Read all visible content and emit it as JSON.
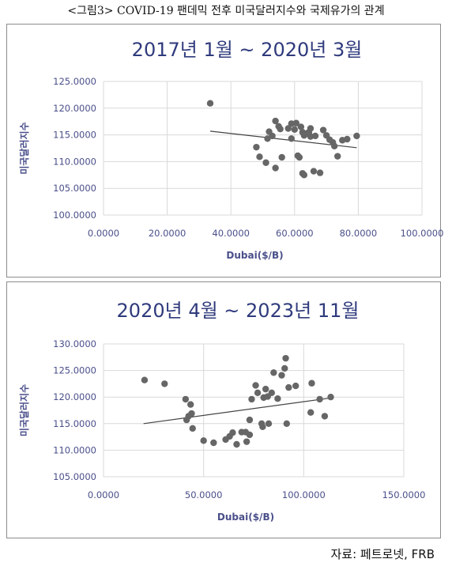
{
  "figure_title": "<그림3> COVID-19 팬데믹 전후 미국달러지수와 국제유가의 관계",
  "source": "자료: 페트로넷, FRB",
  "colors": {
    "title": "#2f3a7c",
    "axis_text": "#4a4f8a",
    "point": "#666666",
    "trend": "#444444",
    "grid": "#d9d9d9"
  },
  "chart_data": [
    {
      "type": "scatter",
      "title": "2017년 1월 ~ 2020년 3월",
      "xlabel": "Dubai($/B)",
      "ylabel": "미국달러지수",
      "xlim": [
        0,
        100
      ],
      "ylim": [
        100,
        125
      ],
      "xticks": [
        0,
        20,
        40,
        60,
        80,
        100
      ],
      "yticks": [
        100,
        105,
        110,
        115,
        120,
        125
      ],
      "xtick_labels": [
        "0.0000",
        "20.0000",
        "40.0000",
        "60.0000",
        "80.0000",
        "100.0000"
      ],
      "ytick_labels": [
        "100.0000",
        "105.0000",
        "110.0000",
        "115.0000",
        "120.0000",
        "125.0000"
      ],
      "grid": true,
      "trendline": [
        [
          33.5,
          115.7
        ],
        [
          79.5,
          112.6
        ]
      ],
      "points": [
        [
          33.5,
          120.9
        ],
        [
          48.0,
          112.7
        ],
        [
          49.0,
          110.9
        ],
        [
          51.0,
          109.8
        ],
        [
          51.5,
          114.3
        ],
        [
          52.0,
          115.6
        ],
        [
          53.0,
          114.8
        ],
        [
          54.0,
          108.8
        ],
        [
          54.0,
          117.6
        ],
        [
          55.0,
          116.6
        ],
        [
          55.5,
          116.1
        ],
        [
          56.0,
          110.8
        ],
        [
          58.0,
          116.2
        ],
        [
          59.0,
          117.1
        ],
        [
          59.0,
          114.3
        ],
        [
          60.0,
          116.0
        ],
        [
          60.5,
          117.2
        ],
        [
          61.0,
          111.1
        ],
        [
          61.5,
          110.8
        ],
        [
          62.0,
          116.5
        ],
        [
          62.5,
          115.5
        ],
        [
          62.5,
          107.8
        ],
        [
          63.0,
          107.5
        ],
        [
          63.0,
          114.9
        ],
        [
          64.0,
          115.3
        ],
        [
          64.5,
          115.5
        ],
        [
          65.0,
          116.2
        ],
        [
          65.0,
          114.7
        ],
        [
          66.0,
          108.2
        ],
        [
          66.5,
          114.8
        ],
        [
          68.0,
          107.9
        ],
        [
          69.0,
          115.9
        ],
        [
          70.0,
          114.9
        ],
        [
          71.0,
          114.1
        ],
        [
          72.0,
          113.6
        ],
        [
          72.5,
          112.9
        ],
        [
          73.5,
          111.0
        ],
        [
          75.0,
          114.0
        ],
        [
          76.5,
          114.2
        ],
        [
          79.5,
          114.8
        ]
      ]
    },
    {
      "type": "scatter",
      "title": "2020년 4월 ~ 2023년 11월",
      "xlabel": "Dubai($/B)",
      "ylabel": "미국달러지수",
      "xlim": [
        0,
        150
      ],
      "ylim": [
        105,
        130
      ],
      "xticks": [
        0,
        50,
        100,
        150
      ],
      "yticks": [
        105,
        110,
        115,
        120,
        125,
        130
      ],
      "xtick_labels": [
        "0.0000",
        "50.0000",
        "100.0000",
        "150.0000"
      ],
      "ytick_labels": [
        "105.0000",
        "110.0000",
        "115.0000",
        "120.0000",
        "125.0000",
        "130.0000"
      ],
      "grid": true,
      "trendline": [
        [
          20,
          115.0
        ],
        [
          113,
          119.8
        ]
      ],
      "points": [
        [
          20.5,
          123.2
        ],
        [
          30.5,
          122.5
        ],
        [
          41.0,
          119.6
        ],
        [
          41.5,
          115.7
        ],
        [
          42.5,
          116.4
        ],
        [
          43.5,
          118.6
        ],
        [
          44.0,
          116.9
        ],
        [
          44.5,
          114.1
        ],
        [
          50.0,
          111.8
        ],
        [
          55.0,
          111.4
        ],
        [
          61.0,
          112.0
        ],
        [
          63.0,
          112.6
        ],
        [
          64.5,
          113.3
        ],
        [
          66.5,
          111.1
        ],
        [
          69.0,
          113.4
        ],
        [
          71.0,
          113.4
        ],
        [
          71.5,
          111.6
        ],
        [
          73.0,
          112.9
        ],
        [
          73.0,
          115.7
        ],
        [
          74.0,
          119.6
        ],
        [
          76.0,
          122.2
        ],
        [
          77.0,
          120.8
        ],
        [
          79.0,
          115.0
        ],
        [
          79.5,
          114.4
        ],
        [
          80.0,
          119.9
        ],
        [
          81.0,
          121.5
        ],
        [
          82.0,
          120.1
        ],
        [
          82.5,
          115.0
        ],
        [
          84.0,
          120.8
        ],
        [
          85.0,
          124.6
        ],
        [
          87.0,
          119.7
        ],
        [
          89.0,
          124.1
        ],
        [
          90.5,
          125.4
        ],
        [
          91.0,
          127.3
        ],
        [
          91.5,
          115.0
        ],
        [
          92.5,
          121.8
        ],
        [
          96.0,
          122.1
        ],
        [
          103.5,
          117.1
        ],
        [
          104.0,
          122.6
        ],
        [
          108.0,
          119.6
        ],
        [
          110.5,
          116.4
        ],
        [
          113.5,
          120.0
        ]
      ]
    }
  ]
}
